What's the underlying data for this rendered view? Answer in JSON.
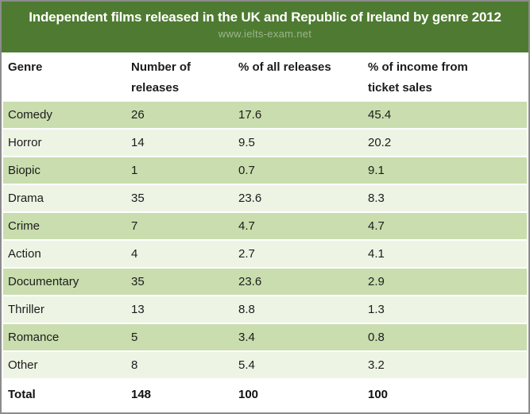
{
  "title": "Independent films released in the UK and Republic of Ireland by genre 2012",
  "watermark": "www.ielts-exam.net",
  "table": {
    "columns": {
      "genre": "Genre",
      "releases": "Number of releases",
      "pct_releases": "% of all releases",
      "pct_income": "% of income from ticket sales"
    },
    "rows": [
      {
        "genre": "Comedy",
        "releases": "26",
        "pct_releases": "17.6",
        "pct_income": "45.4"
      },
      {
        "genre": "Horror",
        "releases": "14",
        "pct_releases": "9.5",
        "pct_income": "20.2"
      },
      {
        "genre": "Biopic",
        "releases": "1",
        "pct_releases": "0.7",
        "pct_income": "9.1"
      },
      {
        "genre": "Drama",
        "releases": "35",
        "pct_releases": "23.6",
        "pct_income": "8.3"
      },
      {
        "genre": "Crime",
        "releases": "7",
        "pct_releases": "4.7",
        "pct_income": "4.7"
      },
      {
        "genre": "Action",
        "releases": "4",
        "pct_releases": "2.7",
        "pct_income": "4.1"
      },
      {
        "genre": "Documentary",
        "releases": "35",
        "pct_releases": "23.6",
        "pct_income": "2.9"
      },
      {
        "genre": "Thriller",
        "releases": "13",
        "pct_releases": "8.8",
        "pct_income": "1.3"
      },
      {
        "genre": "Romance",
        "releases": "5",
        "pct_releases": "3.4",
        "pct_income": "0.8"
      },
      {
        "genre": "Other",
        "releases": "8",
        "pct_releases": "5.4",
        "pct_income": "3.2"
      }
    ],
    "total": {
      "genre": "Total",
      "releases": "148",
      "pct_releases": "100",
      "pct_income": "100"
    }
  },
  "colors": {
    "header_green": "#4E7B31",
    "row_green": "#C9DDAE",
    "row_light": "#EDF4E4",
    "total_row_bg": "#FFFFFF",
    "border_gray": "#8C8C8C",
    "watermark_text": "#9DB58C",
    "title_text": "#FFFFFF",
    "body_text": "#1C1C1C"
  },
  "chart_data": {
    "type": "table",
    "title": "Independent films released in the UK and Republic of Ireland by genre 2012",
    "columns": [
      "Genre",
      "Number of releases",
      "% of all releases",
      "% of income from ticket sales"
    ],
    "rows": [
      [
        "Comedy",
        26,
        17.6,
        45.4
      ],
      [
        "Horror",
        14,
        9.5,
        20.2
      ],
      [
        "Biopic",
        1,
        0.7,
        9.1
      ],
      [
        "Drama",
        35,
        23.6,
        8.3
      ],
      [
        "Crime",
        7,
        4.7,
        4.7
      ],
      [
        "Action",
        4,
        2.7,
        4.1
      ],
      [
        "Documentary",
        35,
        23.6,
        2.9
      ],
      [
        "Thriller",
        13,
        8.8,
        1.3
      ],
      [
        "Romance",
        5,
        3.4,
        0.8
      ],
      [
        "Other",
        8,
        5.4,
        3.2
      ]
    ],
    "total": [
      "Total",
      148,
      100,
      100
    ],
    "layout_hints": {
      "striped_rows": true,
      "stripe_colors": [
        "#C9DDAE",
        "#EDF4E4"
      ],
      "header_bar_color": "#4E7B31"
    }
  }
}
